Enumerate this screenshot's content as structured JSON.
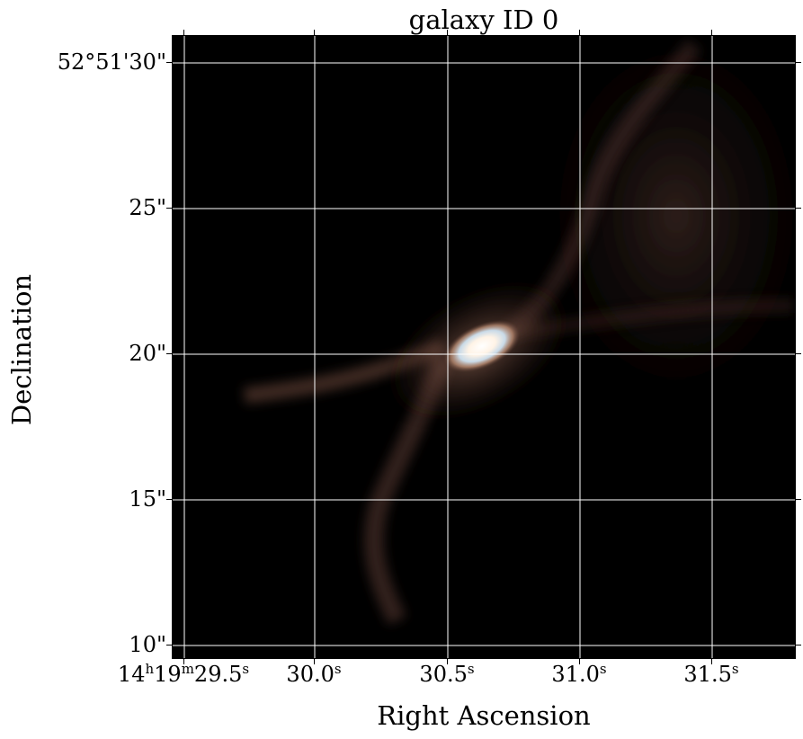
{
  "title": "galaxy ID 0",
  "x_axis": {
    "label": "Right Ascension",
    "ticks": [
      {
        "main": "14",
        "sup_h": "h",
        "min": "19",
        "sup_m": "m",
        "sec": "29.5",
        "sup_s": "s"
      },
      {
        "sec": "30.0",
        "sup_s": "s"
      },
      {
        "sec": "30.5",
        "sup_s": "s"
      },
      {
        "sec": "31.0",
        "sup_s": "s"
      },
      {
        "sec": "31.5",
        "sup_s": "s"
      }
    ]
  },
  "y_axis": {
    "label": "Declination",
    "ticks": [
      "52°51'30\"",
      "25\"",
      "20\"",
      "15\"",
      "10\""
    ]
  },
  "colors": {
    "background": "#000000",
    "grid": "#ffffff",
    "galaxy_core": "#fff6ee",
    "galaxy_halo": "#7fa7c9",
    "dust_lanes": "#c88a74"
  }
}
